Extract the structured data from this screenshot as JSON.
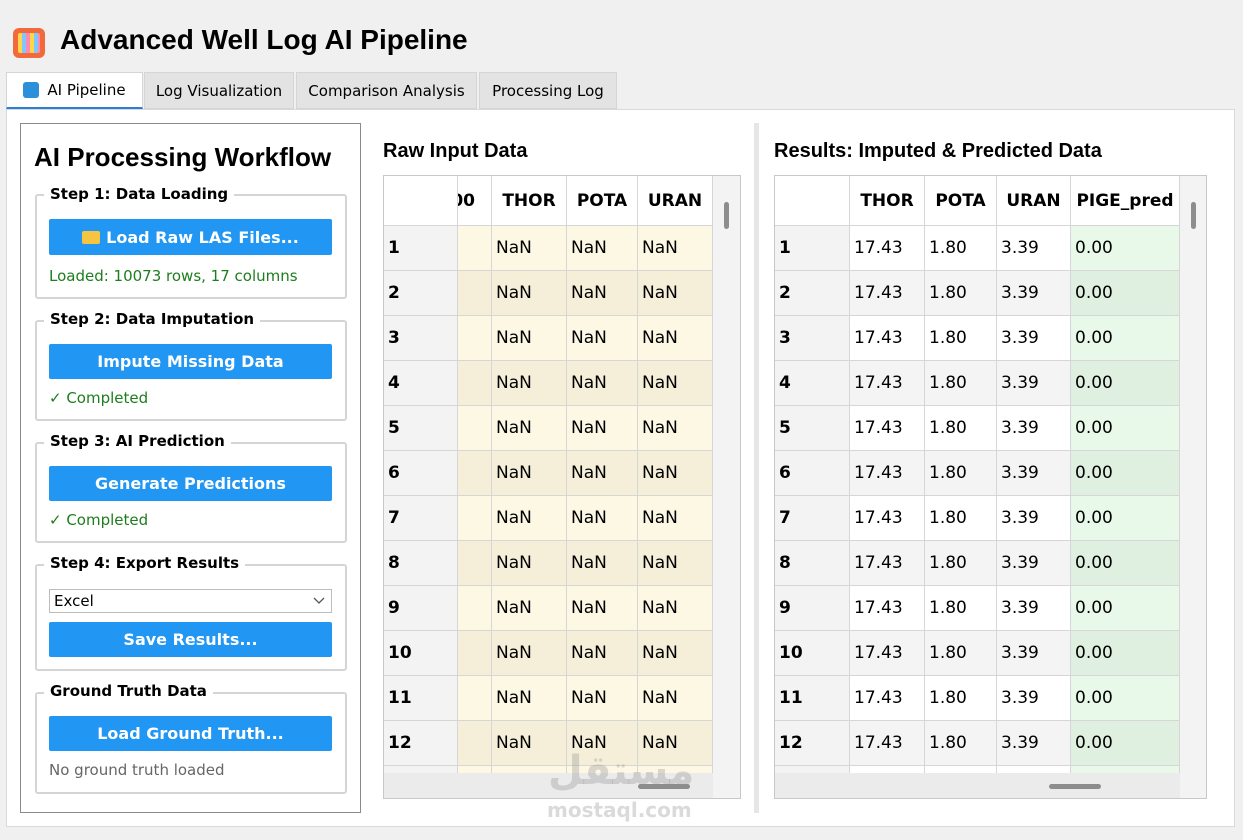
{
  "header": {
    "title": "Advanced Well Log AI Pipeline"
  },
  "tabs": [
    "AI Pipeline",
    "Log Visualization",
    "Comparison Analysis",
    "Processing Log"
  ],
  "workflow": {
    "title": "AI Processing Workflow",
    "steps": [
      {
        "label": "Step 1: Data Loading",
        "button": "Load Raw LAS Files...",
        "status": "Loaded: 10073 rows, 17 columns"
      },
      {
        "label": "Step 2: Data Imputation",
        "button": "Impute Missing Data",
        "status": "✓ Completed"
      },
      {
        "label": "Step 3: AI Prediction",
        "button": "Generate Predictions",
        "status": "✓ Completed"
      },
      {
        "label": "Step 4: Export Results",
        "select": "Excel",
        "button": "Save Results..."
      },
      {
        "label": "Ground Truth Data",
        "button": "Load Ground Truth...",
        "status": "No ground truth loaded"
      }
    ]
  },
  "raw_table": {
    "title": "Raw Input Data",
    "columns": [
      "00",
      "THOR",
      "POTA",
      "URAN"
    ],
    "rows": [
      {
        "index": 1,
        "cells": [
          "NaN",
          "NaN",
          "NaN"
        ]
      },
      {
        "index": 2,
        "cells": [
          "NaN",
          "NaN",
          "NaN"
        ]
      },
      {
        "index": 3,
        "cells": [
          "NaN",
          "NaN",
          "NaN"
        ]
      },
      {
        "index": 4,
        "cells": [
          "NaN",
          "NaN",
          "NaN"
        ]
      },
      {
        "index": 5,
        "cells": [
          "NaN",
          "NaN",
          "NaN"
        ]
      },
      {
        "index": 6,
        "cells": [
          "NaN",
          "NaN",
          "NaN"
        ]
      },
      {
        "index": 7,
        "cells": [
          "NaN",
          "NaN",
          "NaN"
        ]
      },
      {
        "index": 8,
        "cells": [
          "NaN",
          "NaN",
          "NaN"
        ]
      },
      {
        "index": 9,
        "cells": [
          "NaN",
          "NaN",
          "NaN"
        ]
      },
      {
        "index": 10,
        "cells": [
          "NaN",
          "NaN",
          "NaN"
        ]
      },
      {
        "index": 11,
        "cells": [
          "NaN",
          "NaN",
          "NaN"
        ]
      },
      {
        "index": 12,
        "cells": [
          "NaN",
          "NaN",
          "NaN"
        ]
      }
    ]
  },
  "results_table": {
    "title": "Results: Imputed & Predicted Data",
    "columns": [
      "THOR",
      "POTA",
      "URAN",
      "PIGE_pred"
    ],
    "rows": [
      {
        "index": 1,
        "cells": [
          "17.43",
          "1.80",
          "3.39",
          "0.00"
        ]
      },
      {
        "index": 2,
        "cells": [
          "17.43",
          "1.80",
          "3.39",
          "0.00"
        ]
      },
      {
        "index": 3,
        "cells": [
          "17.43",
          "1.80",
          "3.39",
          "0.00"
        ]
      },
      {
        "index": 4,
        "cells": [
          "17.43",
          "1.80",
          "3.39",
          "0.00"
        ]
      },
      {
        "index": 5,
        "cells": [
          "17.43",
          "1.80",
          "3.39",
          "0.00"
        ]
      },
      {
        "index": 6,
        "cells": [
          "17.43",
          "1.80",
          "3.39",
          "0.00"
        ]
      },
      {
        "index": 7,
        "cells": [
          "17.43",
          "1.80",
          "3.39",
          "0.00"
        ]
      },
      {
        "index": 8,
        "cells": [
          "17.43",
          "1.80",
          "3.39",
          "0.00"
        ]
      },
      {
        "index": 9,
        "cells": [
          "17.43",
          "1.80",
          "3.39",
          "0.00"
        ]
      },
      {
        "index": 10,
        "cells": [
          "17.43",
          "1.80",
          "3.39",
          "0.00"
        ]
      },
      {
        "index": 11,
        "cells": [
          "17.43",
          "1.80",
          "3.39",
          "0.00"
        ]
      },
      {
        "index": 12,
        "cells": [
          "17.43",
          "1.80",
          "3.39",
          "0.00"
        ]
      }
    ]
  },
  "watermark": {
    "arabic": "مستقل",
    "site": "mostaql.com"
  }
}
